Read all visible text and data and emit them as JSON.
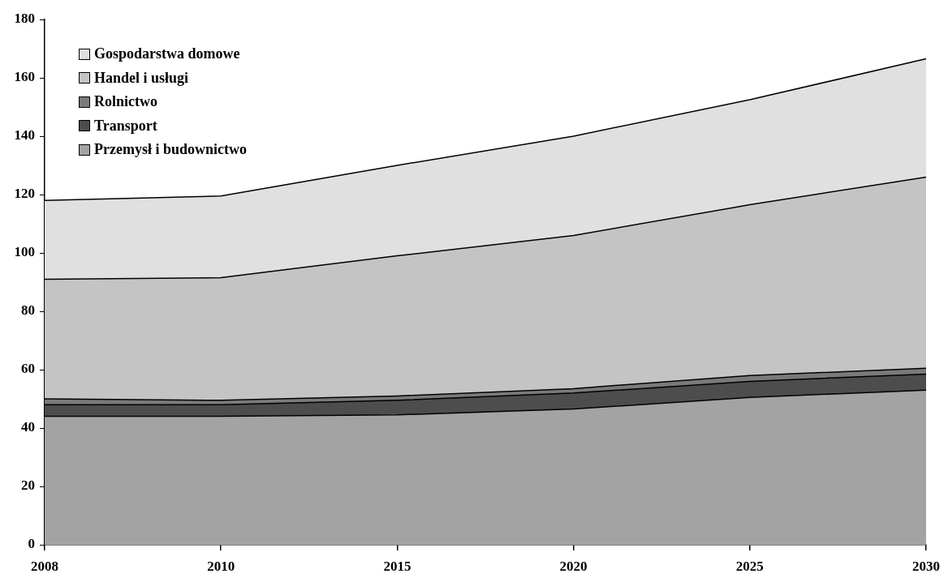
{
  "chart_data": {
    "type": "area",
    "stacked": true,
    "categories": [
      "2008",
      "2010",
      "2015",
      "2020",
      "2025",
      "2030"
    ],
    "series": [
      {
        "name": "Przemysł i budownictwo",
        "color": "#a3a3a3",
        "values": [
          44,
          44,
          44.5,
          46.5,
          50.5,
          53
        ]
      },
      {
        "name": "Transport",
        "color": "#4d4d4d",
        "values": [
          4,
          4,
          5,
          5.5,
          5.5,
          5.5
        ]
      },
      {
        "name": "Rolnictwo",
        "color": "#7a7a7a",
        "values": [
          2,
          1.5,
          1.5,
          1.5,
          2,
          2
        ]
      },
      {
        "name": "Handel i usługi",
        "color": "#c4c4c4",
        "values": [
          41,
          42,
          48,
          52.5,
          58.5,
          65.5
        ]
      },
      {
        "name": "Gospodarstwa domowe",
        "color": "#e0e0e0",
        "values": [
          27,
          28,
          31,
          34,
          36,
          40.5
        ]
      }
    ],
    "ylim": [
      0,
      180
    ],
    "yticks": [
      0,
      20,
      40,
      60,
      80,
      100,
      120,
      140,
      160,
      180
    ],
    "grid": false,
    "legend": "top left"
  }
}
